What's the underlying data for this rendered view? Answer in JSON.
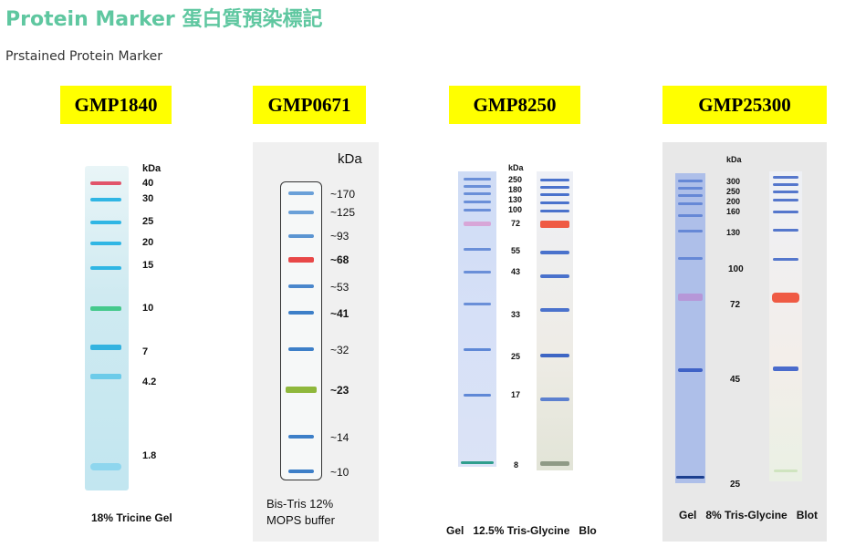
{
  "header": {
    "title": "Protein Marker 蛋白質預染標記",
    "subtitle": "Prstained Protein Marker"
  },
  "colors": {
    "title": "#5fc7a0",
    "badge": "#ffff00"
  },
  "products": [
    {
      "id": "GMP1840",
      "label": "GMP1840",
      "kda_label": "kDa",
      "markers": [
        "40",
        "30",
        "25",
        "20",
        "15",
        "10",
        "7",
        "4.2",
        "1.8"
      ],
      "caption": "18% Tricine Gel"
    },
    {
      "id": "GMP0671",
      "label": "GMP0671",
      "kda_label": "kDa",
      "markers": [
        "~170",
        "~125",
        "~93",
        "~68",
        "~53",
        "~41",
        "~32",
        "~23",
        "~14",
        "~10"
      ],
      "caption_line1": "Bis-Tris 12%",
      "caption_line2": "MOPS buffer"
    },
    {
      "id": "GMP8250",
      "label": "GMP8250",
      "kda_label": "kDa",
      "markers": [
        "250",
        "180",
        "130",
        "100",
        "72",
        "55",
        "43",
        "33",
        "25",
        "17",
        "8"
      ],
      "caption": "Gel   12.5% Tris-Glycine   Blo"
    },
    {
      "id": "GMP25300",
      "label": "GMP25300",
      "kda_label": "kDa",
      "markers": [
        "300",
        "250",
        "200",
        "160",
        "130",
        "100",
        "72",
        "45",
        "25"
      ],
      "caption": "Gel   8% Tris-Glycine   Blot"
    }
  ]
}
